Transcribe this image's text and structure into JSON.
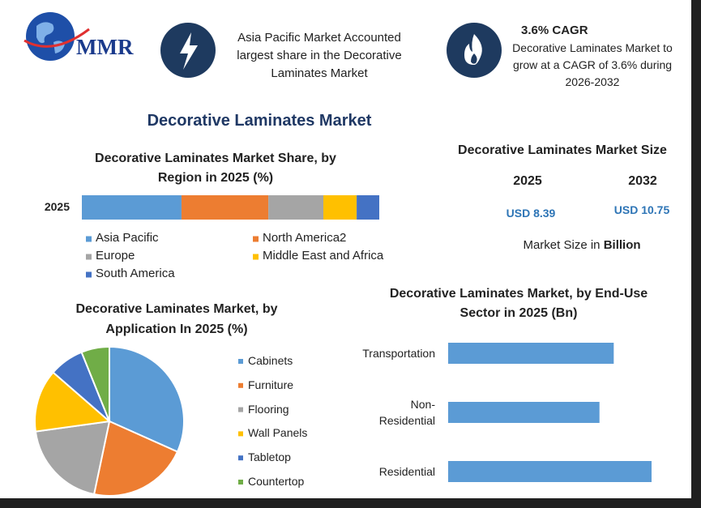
{
  "header": {
    "logo": "MMR",
    "highlight": "Asia Pacific Market Accounted largest share in the Decorative Laminates Market",
    "cagr_title": "3.6% CAGR",
    "cagr_text": "Decorative Laminates Market to grow at a CAGR of 3.6% during 2026-2032"
  },
  "title": "Decorative Laminates Market",
  "market_size": {
    "title": "Decorative Laminates Market Size",
    "years": [
      "2025",
      "2032"
    ],
    "values": [
      "USD 8.39",
      "USD 10.75"
    ],
    "note": "Market Size in",
    "note_emphasis": "Billion"
  },
  "chart_data": [
    {
      "type": "stacked-bar",
      "orientation": "horizontal",
      "title": "Decorative Laminates Market Share, by Region in 2025 (%)",
      "categories": [
        "2025"
      ],
      "series": [
        {
          "name": "Asia Pacific",
          "color": "#5b9bd5",
          "values": [
            33.5
          ]
        },
        {
          "name": "North America2",
          "color": "#ed7d31",
          "values": [
            29.2
          ]
        },
        {
          "name": "Europe",
          "color": "#a5a5a5",
          "values": [
            18.5
          ]
        },
        {
          "name": "Middle East and Africa",
          "color": "#ffc000",
          "values": [
            11.2
          ]
        },
        {
          "name": "South America",
          "color": "#4472c4",
          "values": [
            7.6
          ]
        }
      ]
    },
    {
      "type": "pie",
      "title": "Decorative Laminates Market, by Application In 2025 (%)",
      "categories": [
        "Cabinets",
        "Furniture",
        "Flooring",
        "Wall Panels",
        "Tabletop",
        "Countertop"
      ],
      "values": [
        31.7,
        21.6,
        19.5,
        13.6,
        7.5,
        6.1
      ],
      "colors": [
        "#5b9bd5",
        "#ed7d31",
        "#a5a5a5",
        "#ffc000",
        "#4472c4",
        "#70ad47"
      ]
    },
    {
      "type": "bar",
      "orientation": "horizontal",
      "title": "Decorative Laminates Market, by End-Use Sector in 2025 (Bn)",
      "categories": [
        "Transportation",
        "Non-Residential",
        "Residential"
      ],
      "values": [
        2.67,
        2.44,
        3.28
      ],
      "color": "#5b9bd5"
    }
  ]
}
